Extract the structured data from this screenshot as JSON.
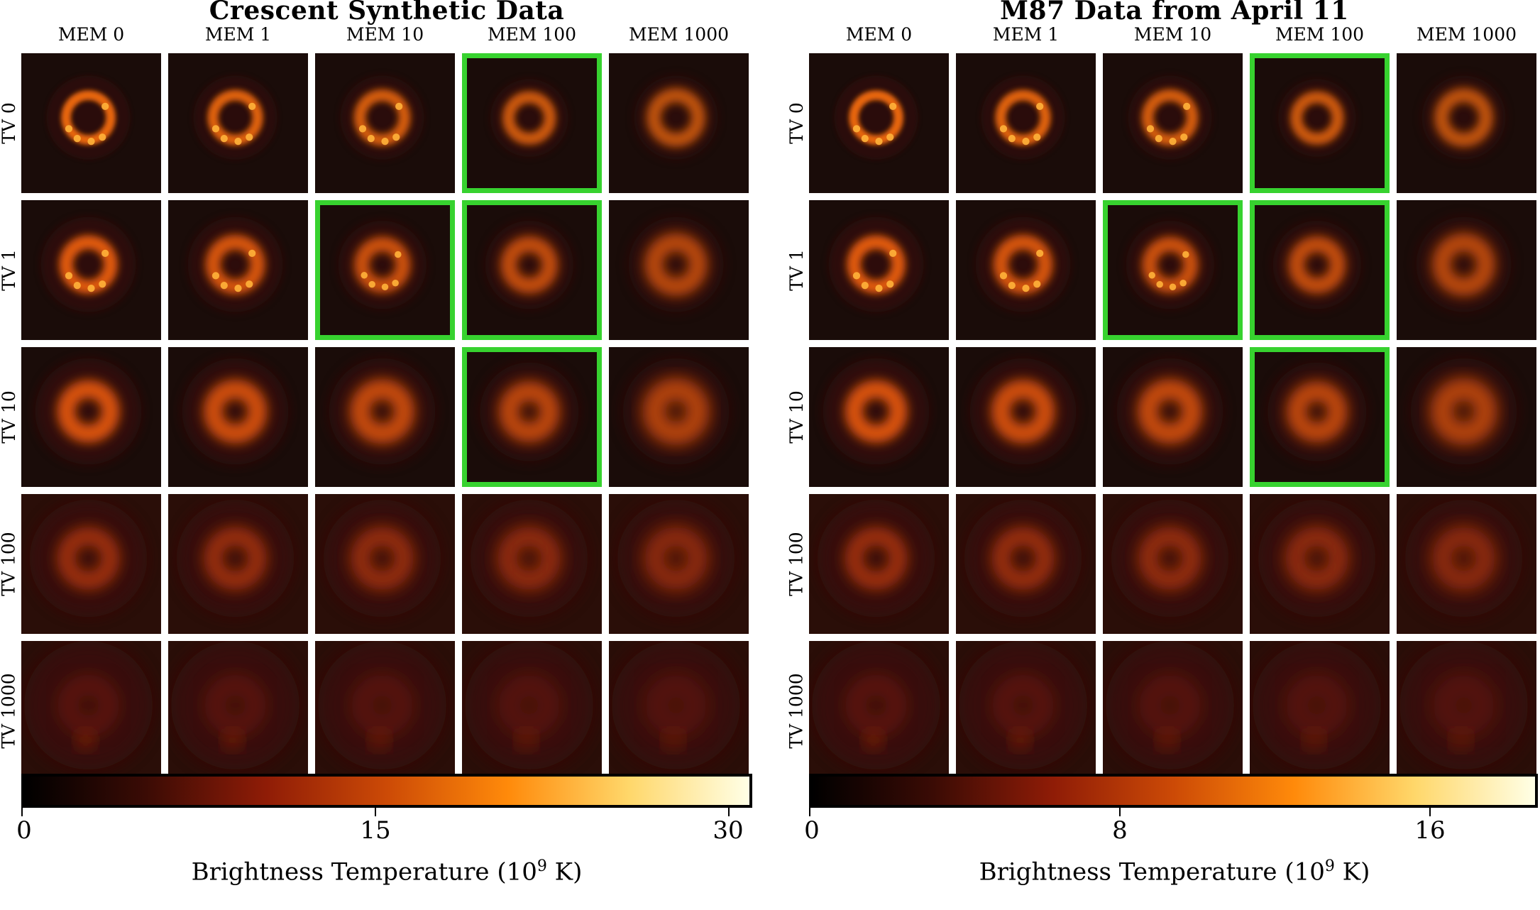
{
  "colorscale": [
    "#000000",
    "#3a0b05",
    "#8f1c06",
    "#cc4a06",
    "#ff8a0a",
    "#ffd76a",
    "#ffffe6"
  ],
  "highlight_color": "#37d22f",
  "panels": [
    {
      "title": "Crescent Synthetic Data",
      "columns": [
        "MEM 0",
        "MEM 1",
        "MEM 10",
        "MEM 100",
        "MEM 1000"
      ],
      "rows": [
        "TV 0",
        "TV 1",
        "TV 10",
        "TV 100",
        "TV 1000"
      ],
      "highlighted": [
        [
          0,
          3
        ],
        [
          1,
          2
        ],
        [
          1,
          3
        ],
        [
          2,
          3
        ]
      ],
      "colorbar": {
        "ticks": [
          "0",
          "15",
          "30"
        ],
        "max": 31,
        "tick_values": [
          0,
          15,
          30
        ],
        "label": "Brightness Temperature (10",
        "label_exp": "9",
        "label_unit": " K)"
      }
    },
    {
      "title": "M87 Data from April 11",
      "columns": [
        "MEM 0",
        "MEM 1",
        "MEM 10",
        "MEM 100",
        "MEM 1000"
      ],
      "rows": [
        "TV 0",
        "TV 1",
        "TV 10",
        "TV 100",
        "TV 1000"
      ],
      "highlighted": [
        [
          0,
          3
        ],
        [
          1,
          2
        ],
        [
          1,
          3
        ],
        [
          2,
          3
        ]
      ],
      "colorbar": {
        "ticks": [
          "0",
          "8",
          "16"
        ],
        "max": 18.8,
        "tick_values": [
          0,
          8,
          16
        ],
        "label": "Brightness Temperature (10",
        "label_exp": "9",
        "label_unit": " K)"
      }
    }
  ]
}
